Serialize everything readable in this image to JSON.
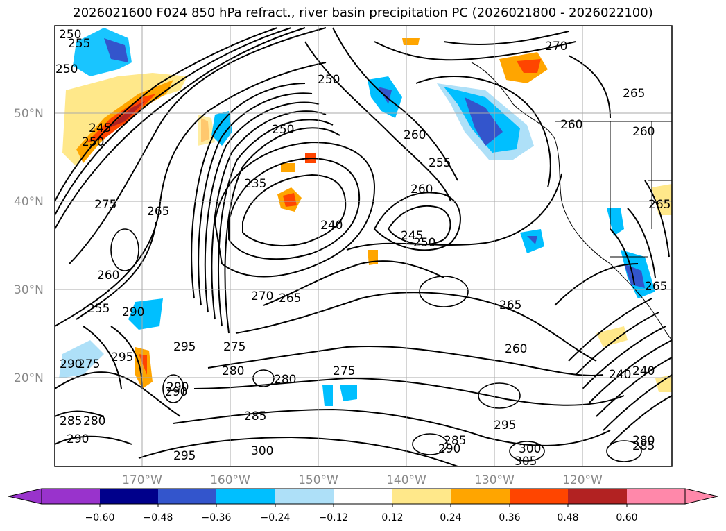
{
  "figure": {
    "title": "2026021600 F024 850 hPa refract., river basin precipitation PC (2026021800 - 2026022100)"
  },
  "axes": {
    "lat_labels": [
      "50°N",
      "40°N",
      "30°N",
      "20°N"
    ],
    "lon_labels": [
      "170°W",
      "160°W",
      "150°W",
      "140°W",
      "130°W",
      "120°W"
    ]
  },
  "contour_labels": [
    "250",
    "255",
    "250",
    "245",
    "250",
    "240",
    "235",
    "250",
    "250",
    "255",
    "260",
    "260",
    "270",
    "265",
    "275",
    "265",
    "260",
    "255",
    "290",
    "295",
    "290",
    "275",
    "270",
    "265",
    "240",
    "245",
    "250",
    "260",
    "265",
    "260",
    "275",
    "280",
    "280",
    "285",
    "295",
    "290",
    "285",
    "280",
    "290",
    "300",
    "305",
    "300",
    "295",
    "285",
    "290",
    "240",
    "265",
    "260",
    "265",
    "280",
    "285",
    "275",
    "290",
    "295"
  ],
  "colorbar": {
    "tick_labels": [
      "−0.60",
      "−0.48",
      "−0.36",
      "−0.24",
      "−0.12",
      "0.12",
      "0.24",
      "0.36",
      "0.48",
      "0.60"
    ],
    "colors": [
      "#9933cc",
      "#00008b",
      "#3355cc",
      "#00bfff",
      "#aee0f8",
      "#ffffff",
      "#ffe88a",
      "#ffa500",
      "#ff4500",
      "#b22222",
      "#ff88aa"
    ]
  },
  "colors": {
    "contour": "#000000",
    "grid": "#aaaaaa",
    "coast": "#000000"
  }
}
